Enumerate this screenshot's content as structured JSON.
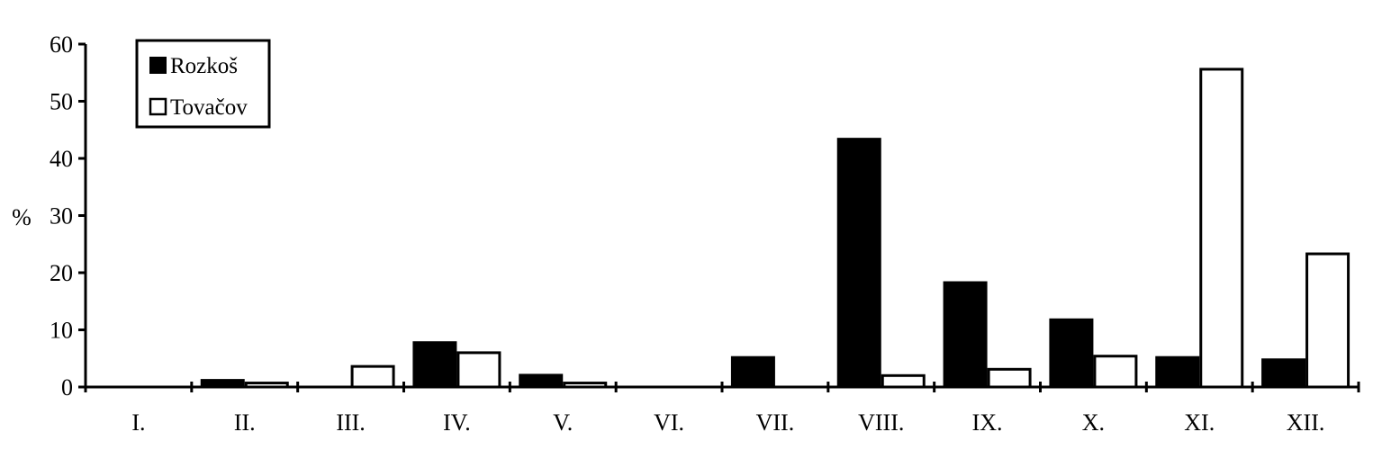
{
  "chart_data": {
    "type": "bar",
    "categories": [
      "I.",
      "II.",
      "III.",
      "IV.",
      "V.",
      "VI.",
      "VII.",
      "VIII.",
      "IX.",
      "X.",
      "XI.",
      "XII."
    ],
    "series": [
      {
        "name": "Rozkoš",
        "values": [
          0,
          1.4,
          0,
          8.0,
          2.3,
          0,
          5.4,
          43.6,
          18.5,
          12.0,
          5.4,
          5.0
        ],
        "color": "#000000",
        "fill": "solid"
      },
      {
        "name": "Tovačov",
        "values": [
          0,
          0.7,
          3.6,
          6.0,
          0.7,
          0,
          0,
          2.0,
          3.1,
          5.4,
          55.6,
          23.3
        ],
        "color": "#ffffff",
        "fill": "outline"
      }
    ],
    "ylabel": "%",
    "xlabel": "",
    "ylim": [
      0,
      60
    ],
    "yticks": [
      "0",
      "10",
      "20",
      "30",
      "40",
      "50",
      "60"
    ],
    "legend_position": "top-left",
    "grid": false
  }
}
